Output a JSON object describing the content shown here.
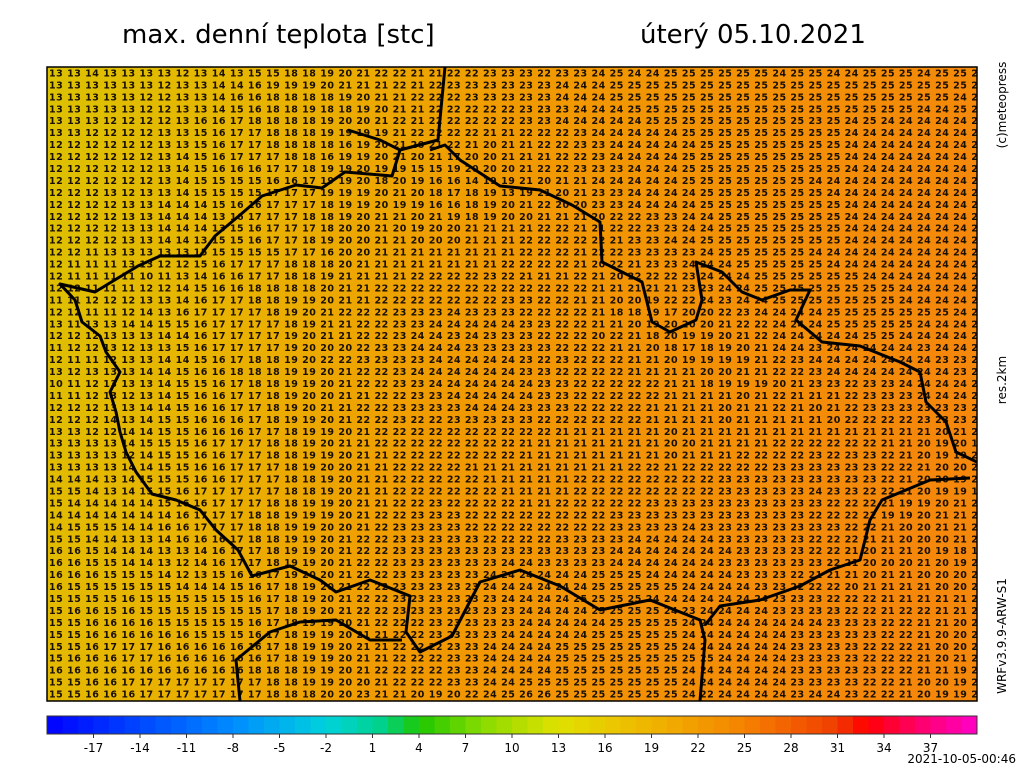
{
  "header": {
    "title": "max. denní teplota [stc]",
    "date": "úterý 05.10.2021"
  },
  "side_labels": {
    "copyright": "(c)meteopress",
    "resolution": "res.2km",
    "model": "WRFv3.9.9-ARW-S1"
  },
  "grid": {
    "rows": [
      "13 13 14 13 13 13 13 12 13 14 13 15 15 18 18 19 20 21 22 22 21 21 22 22 23 23 23 22 23 23 24 25 24 24 25 25 25 25 25 25 24 25 25 24 24 25 25 25 24 25 25 25",
      "13 13 13 13 13 13 12 13 13 14 14 16 19 19 19 20 21 21 21 22 21 22 23 23 23 23 23 23 24 24 24 25 25 25 25 25 25 25 25 25 25 25 25 25 25 25 25 25 25 25 25 24",
      "13 13 13 13 13 12 12 13 13 14 16 16 18 18 18 18 19 20 21 21 22 22 22 23 23 23 23 23 24 24 24 25 25 25 25 25 25 25 25 25 25 25 25 25 25 25 25 25 25 25 24 24",
      "13 13 13 13 13 12 12 13 13 14 15 16 18 18 19 18 18 19 20 21 21 22 22 22 22 22 23 23 23 24 24 24 25 25 25 25 25 25 25 25 25 25 25 25 25 25 25 25 24 24 25 24",
      "13 13 13 12 12 12 12 13 16 16 17 18 18 18 18 19 20 20 21 22 21 22 22 22 22 22 23 23 24 24 24 24 24 25 25 25 25 25 25 25 25 25 23 25 24 25 24 24 24 24 24 24",
      "13 13 12 12 12 12 13 13 15 16 17 17 18 18 18 19 19 19 19 21 22 22 22 22 21 21 22 22 22 23 24 24 24 24 24 25 25 25 25 25 25 25 25 25 24 24 24 24 24 24 24 24",
      "12 12 12 12 12 12 13 13 15 16 17 17 18 18 18 18 16 19 20 21 20 21 22 21 20 21 21 22 22 23 23 24 24 24 24 24 25 25 25 25 25 25 25 25 24 24 24 24 24 24 24 24",
      "12 12 12 12 12 12 13 14 15 16 17 17 17 18 18 16 19 19 20 21 20 21 17 20 20 21 21 21 22 22 23 24 24 24 24 25 25 25 25 25 25 25 25 25 24 24 24 24 24 24 24 24",
      "12 12 12 12 12 12 13 14 15 16 16 16 17 17 18 19 19 20 19 19 15 15 19 20 20 20 21 22 22 23 23 23 24 24 24 25 25 25 25 25 25 25 25 25 24 24 24 24 24 24 24 24",
      "12 12 12 12 12 12 13 14 15 15 15 15 16 16 17 19 19 20 18 20 19 16 16 14 19 19 21 20 21 21 24 24 24 24 24 25 25 25 25 25 25 25 24 24 24 24 24 24 24 24 24 24",
      "12 12 12 13 12 13 13 14 15 15 15 15 17 17 17 19 19 19 20 21 20 18 17 18 19 13 19 21 20 21 23 23 24 24 24 24 25 25 25 25 25 25 25 24 24 24 24 24 24 24 24 24",
      "12 12 12 12 13 13 14 14 14 15 16 16 17 17 17 18 19 19 20 19 19 16 16 18 19 20 21 22 20 20 23 23 24 24 24 24 25 25 25 25 25 25 25 25 24 24 24 24 24 24 24 24",
      "12 12 12 12 13 13 14 14 14 13 16 17 17 17 18 18 19 20 21 21 20 21 19 18 19 20 20 21 21 21 20 22 22 23 23 24 24 25 25 25 25 25 25 25 24 24 24 24 24 24 24 24",
      "12 12 12 12 13 13 14 14 14 13 15 16 17 17 17 18 20 20 21 20 19 20 20 21 21 21 21 22 22 21 21 22 22 23 23 24 24 25 25 25 25 25 25 25 24 24 24 24 24 24 24 24",
      "12 12 12 12 13 13 14 14 13 15 15 16 17 17 18 19 20 20 21 21 20 20 20 21 21 21 22 22 22 22 22 21 23 23 24 24 25 25 25 25 25 25 25 25 24 24 24 24 24 24 24 24",
      "12 12 11 13 13 13 13 13 15 15 15 15 15 17 17 16 20 20 21 21 21 21 21 21 21 21 22 22 22 21 22 22 23 23 23 23 24 25 25 25 25 25 24 24 24 24 24 24 24 24 24 24",
      "12 11 11 11 13 13 12 12 15 16 17 17 17 18 18 18 20 21 21 21 21 21 21 21 21 22 22 22 22 21 20 22 21 23 23 24 24 24 25 25 25 25 25 24 24 24 24 24 24 24 24 24",
      "12 11 11 11 11 10 11 13 14 16 16 17 17 18 18 19 21 21 21 21 22 22 22 22 23 22 21 21 21 22 21 20 22 22 22 23 24 24 24 25 25 25 25 25 25 24 24 24 24 24 24 24",
      "12 12 11 11 11 12 12 14 15 16 16 18 18 18 18 20 21 21 22 22 22 22 22 22 22 22 22 22 22 22 21 21 21 21 21 23 23 24 24 25 25 25 25 25 25 25 25 24 24 24 24 24",
      "11 11 12 12 12 13 13 14 16 17 17 18 18 19 19 20 21 21 22 22 22 22 22 22 22 23 23 22 22 21 21 20 20 19 22 22 24 23 24 24 25 25 25 25 25 25 25 24 24 24 24 24",
      "12 12 11 11 12 14 13 16 17 17 17 17 18 19 20 21 22 22 22 23 23 23 24 23 23 23 22 22 22 22 21 18 18 19 17 20 20 22 23 24 24 24 24 25 25 25 25 25 25 25 24 24",
      "13 11 13 13 14 14 15 15 16 17 17 17 17 18 19 21 21 22 22 23 23 24 24 24 24 24 23 23 22 22 21 21 20 19 20 20 20 21 22 22 24 24 24 25 25 25 25 25 24 24 24 24",
      "12 12 12 13 13 13 14 14 16 17 17 17 17 19 20 21 21 22 22 23 24 24 23 24 23 23 23 22 22 22 20 22 21 18 20 19 19 20 21 22 24 24 24 24 24 25 25 24 24 24 24 24",
      "11 12 12 13 12 13 13 15 16 17 17 17 17 19 20 20 20 22 23 23 24 24 24 23 23 23 23 23 22 22 22 21 21 20 18 17 18 19 20 21 24 24 23 24 24 24 24 24 23 24 24 24",
      "12 11 11 12 13 13 14 14 15 16 17 18 18 19 20 22 22 23 23 23 23 24 24 24 24 24 23 22 23 22 22 22 21 21 20 19 19 19 19 21 22 23 24 24 24 24 24 24 24 23 23 23",
      "13 12 13 13 13 14 14 15 16 16 18 18 18 19 19 20 21 22 22 23 24 24 24 24 24 24 23 23 22 22 22 22 21 21 21 21 20 20 21 21 22 22 23 24 24 24 24 24 24 24 23 23",
      "10 11 12 13 13 13 14 15 15 16 17 18 18 19 19 20 21 22 22 23 23 24 24 24 24 24 24 23 23 22 22 22 22 22 21 21 18 19 19 19 20 21 23 23 22 23 23 24 24 24 24 23",
      "11 11 12 13 12 13 14 15 16 16 17 17 18 19 20 20 21 21 22 22 23 23 24 24 24 24 24 23 23 22 22 22 22 22 21 21 21 21 20 21 22 21 21 21 22 23 23 23 24 24 24 24",
      "12 12 12 13 13 14 14 15 16 16 17 17 18 19 20 21 21 22 22 23 23 23 23 24 24 24 23 23 23 22 22 22 22 21 21 21 21 20 21 21 22 21 20 21 22 23 23 23 23 23 23 23",
      "12 12 12 14 13 14 15 15 16 16 16 17 18 19 19 20 21 22 22 23 22 22 23 23 23 23 23 22 22 22 22 22 22 21 21 21 21 20 21 21 21 21 21 20 22 22 22 22 23 23 23 23",
      "13 13 12 12 14 14 15 15 16 16 16 17 17 18 19 19 20 21 22 22 22 22 22 22 22 22 22 22 21 21 21 21 21 21 20 21 21 21 21 21 21 21 21 21 21 21 21 21 21 20 21 21",
      "13 13 13 13 14 15 15 15 16 17 17 17 18 18 19 20 21 21 22 22 22 22 22 22 22 22 21 21 21 21 21 21 21 21 20 20 21 21 21 21 22 22 22 22 22 22 21 21 20 19 20 19",
      "13 13 13 13 12 14 15 15 16 16 17 17 18 18 19 19 20 21 21 22 22 22 22 22 22 22 21 21 21 21 21 21 21 21 20 21 21 21 22 22 22 22 23 22 23 23 22 21 20 19 19 20",
      "13 13 13 13 14 14 15 15 16 16 17 17 17 18 19 20 20 21 21 22 22 22 22 21 21 21 21 21 21 21 21 21 22 22 21 22 22 22 22 22 23 23 23 23 23 23 22 22 21 20 20 20",
      "14 14 14 13 14 15 15 15 16 16 17 17 17 18 18 19 20 21 21 22 22 22 22 22 21 21 21 21 21 22 22 22 22 22 22 22 22 23 23 23 23 23 23 23 23 23 22 21 20 20 19 20",
      "15 15 14 13 14 15 15 16 17 17 17 17 17 18 18 19 20 21 21 22 22 22 22 22 22 21 21 21 21 22 22 22 22 22 22 22 22 23 23 23 23 23 24 23 23 22 22 21 20 19 19 19",
      "15 14 14 14 14 14 15 16 16 17 17 17 18 18 19 19 20 21 21 22 22 23 22 22 22 22 21 21 22 22 22 22 22 23 23 23 23 23 23 23 23 23 23 22 22 22 21 19 19 20 21 21",
      "14 14 14 14 14 14 14 16 17 17 17 18 18 19 19 19 20 21 22 22 23 23 23 22 22 22 22 22 22 22 22 23 23 23 23 23 23 23 23 23 23 23 22 22 22 22 19 19 20 21 21 22",
      "14 15 15 15 14 14 16 16 17 17 17 18 18 19 19 20 20 21 22 23 23 23 23 22 22 22 22 22 22 22 22 23 23 23 23 24 23 23 23 23 23 23 23 23 22 22 21 20 20 21 21 21",
      "15 15 14 14 13 13 14 16 16 16 17 18 18 19 19 20 21 22 22 23 23 23 23 23 22 22 22 22 23 23 23 23 24 24 24 24 24 23 23 23 23 23 22 22 22 21 21 20 20 20 21 22",
      "16 16 15 14 14 14 13 13 14 16 17 17 18 19 19 20 21 22 22 23 23 23 23 23 23 23 23 23 23 23 23 24 24 24 24 24 24 24 23 23 23 23 22 22 21 20 21 21 20 19 18 17",
      "16 16 15 15 14 14 13 12 14 16 17 17 18 19 19 20 21 22 22 23 23 23 23 23 23 24 24 23 23 23 23 24 24 24 24 24 24 23 23 23 23 23 23 22 21 20 20 20 21 20 19 20",
      "16 16 16 15 15 15 14 12 13 15 16 16 17 19 20 20 21 22 22 23 23 23 23 23 24 24 24 24 24 24 25 25 25 24 24 24 24 24 23 23 23 22 21 21 21 20 21 21 20 20 20 21",
      "16 15 15 15 15 15 15 14 14 14 15 16 17 18 19 20 21 22 22 23 23 23 23 23 24 24 24 24 24 24 25 25 25 25 25 24 24 24 24 23 23 22 22 22 20 21 21 21 21 20 20 20",
      "15 15 15 15 16 15 15 15 15 15 15 16 17 18 19 20 21 22 22 23 23 23 23 23 23 24 24 24 24 25 25 25 25 24 24 24 24 24 24 24 23 23 23 22 22 22 21 21 21 21 21 21",
      "15 16 16 15 16 15 15 15 15 15 15 15 17 18 19 20 21 22 22 23 23 23 23 23 23 23 24 24 24 24 25 25 25 25 24 23 24 24 24 24 23 23 23 23 22 22 21 22 22 21 21 21",
      "15 15 16 16 16 16 15 15 15 15 15 16 17 18 19 19 20 21 22 22 22 23 23 23 23 23 24 24 24 24 24 25 25 25 25 24 24 24 24 24 24 24 24 23 23 23 22 22 21 21 20 20",
      "15 15 16 16 16 16 16 16 15 15 15 16 17 18 19 19 20 21 21 22 22 23 23 23 23 24 24 24 24 24 25 25 25 25 25 24 24 24 24 24 24 23 23 23 23 23 22 22 21 20 20 20",
      "15 15 16 17 17 17 16 16 16 16 16 16 17 18 19 19 20 21 21 22 22 22 23 23 24 24 24 24 25 25 25 25 25 25 25 24 24 24 24 24 24 23 23 23 23 22 22 22 21 20 20 21",
      "15 16 16 16 17 17 16 16 16 16 16 16 17 18 19 19 20 21 21 22 22 22 23 23 24 24 24 24 25 25 25 25 25 25 25 25 25 24 24 24 24 23 23 23 23 22 22 22 21 20 21 20",
      "16 16 16 16 16 16 16 16 16 16 16 18 18 18 19 19 20 21 22 22 22 22 23 23 24 24 24 24 25 25 25 25 25 25 25 24 24 24 24 24 24 23 23 23 23 23 22 22 21 21 19 21",
      "15 15 16 16 17 17 17 17 17 17 17 17 18 18 19 19 20 20 21 22 22 22 23 23 24 24 25 25 25 25 25 25 25 25 25 24 24 24 24 24 24 23 23 23 23 22 22 21 20 20 19 21",
      "15 15 16 16 16 17 17 17 17 17 17 17 18 18 18 20 20 23 21 21 20 19 20 22 24 25 26 26 25 25 25 25 25 25 25 24 22 24 24 24 24 23 24 24 23 22 22 21 20 19 19 21"
    ]
  },
  "colorbar": {
    "range": [
      -20,
      40
    ],
    "ticks": [
      -17,
      -14,
      -11,
      -8,
      -5,
      -2,
      1,
      4,
      7,
      10,
      13,
      16,
      19,
      22,
      25,
      28,
      31,
      34,
      37
    ]
  },
  "timestamp": "2021-10-05-00:46"
}
